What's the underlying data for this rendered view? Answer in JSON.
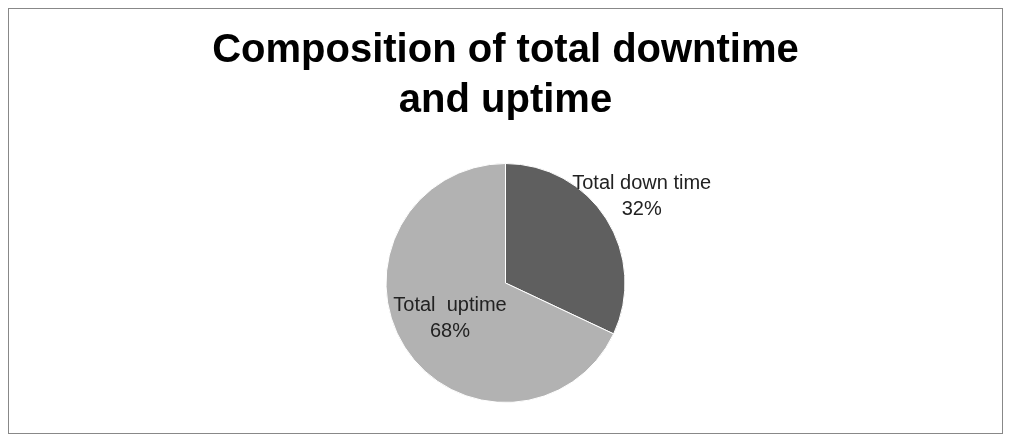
{
  "chart_data": {
    "type": "pie",
    "title": "Composition of total downtime and uptime",
    "categories": [
      "Total down time",
      "Total  uptime"
    ],
    "values": [
      32,
      68
    ],
    "colors": [
      "#5f5f5f",
      "#b2b2b2"
    ],
    "value_labels": [
      "32%",
      "68%"
    ],
    "legend": false
  }
}
